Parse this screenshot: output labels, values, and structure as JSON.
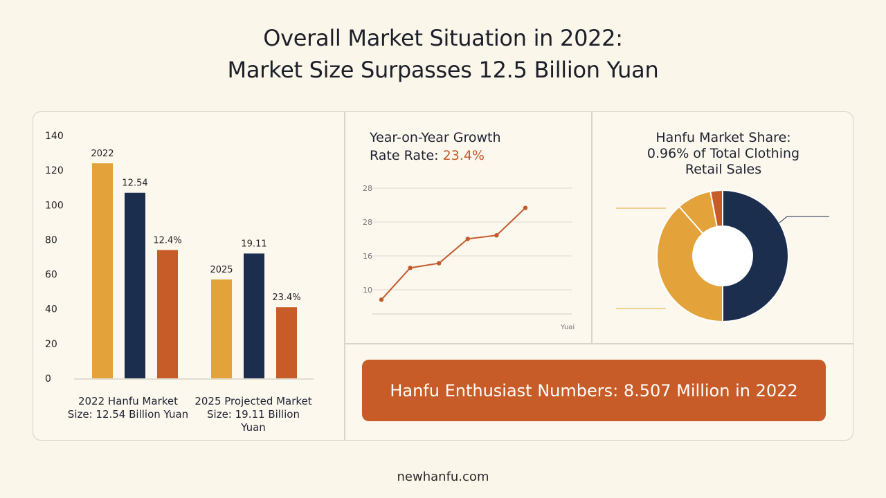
{
  "title_line1": "Overall Market Situation in 2022:",
  "title_line2": "Market Size Surpasses 12.5 Billion Yuan",
  "colors": {
    "gold": "#e3a33a",
    "navy": "#1c2e4e",
    "orange": "#c85c28",
    "line": "#c25a2c",
    "grid": "#ddd8cc"
  },
  "chart_data": [
    {
      "type": "bar",
      "y_ticks": [
        "0",
        "20",
        "40",
        "60",
        "80",
        "100",
        "120",
        "140"
      ],
      "ylim": [
        0,
        140
      ],
      "groups": [
        {
          "caption": "2022 Hanfu Market Size: 12.54 Billion Yuan",
          "bars": [
            {
              "value": 124,
              "color": "gold",
              "label": "2022"
            },
            {
              "value": 107,
              "color": "navy",
              "label": "12.54"
            },
            {
              "value": 74,
              "color": "orange",
              "label": "12.4%"
            }
          ]
        },
        {
          "caption": "2025 Projected Market Size: 19.11 Billion Yuan",
          "bars": [
            {
              "value": 57,
              "color": "gold",
              "label": "2025"
            },
            {
              "value": 72,
              "color": "navy",
              "label": "19.11"
            },
            {
              "value": 41,
              "color": "orange",
              "label": "23.4%"
            }
          ]
        }
      ]
    },
    {
      "type": "line",
      "title_prefix": "Year-on-Year Growth Rate Rate: ",
      "title_value": "23.4%",
      "y_ticks": [
        "10",
        "16",
        "28",
        "28"
      ],
      "x_label": "Yuai",
      "points": [
        0.7,
        1.86,
        2.03,
        2.92,
        3.05,
        4.05
      ]
    },
    {
      "type": "pie",
      "title": "Hanfu Market Share: 0.96% of Total Clothing Retail Sales",
      "slices": [
        {
          "value": 50.0,
          "color": "navy"
        },
        {
          "value": 38.5,
          "color": "gold"
        },
        {
          "value": 8.5,
          "color": "gold"
        },
        {
          "value": 3.0,
          "color": "orange"
        }
      ]
    }
  ],
  "banner": "Hanfu Enthusiast Numbers: 8.507 Million in 2022",
  "footer": "newhanfu.com"
}
